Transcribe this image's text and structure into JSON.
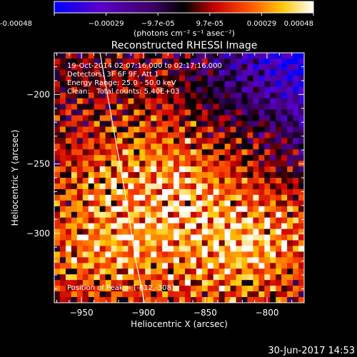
{
  "chart_data": {
    "type": "heatmap",
    "title": "Reconstructed RHESSI Image",
    "xlabel": "Heliocentric X (arcsec)",
    "ylabel": "Heliocentric Y (arcsec)",
    "xlim": [
      -972,
      -770
    ],
    "ylim": [
      -350,
      -170
    ],
    "x_ticks": [
      -950,
      -900,
      -850,
      -800
    ],
    "y_ticks": [
      -200,
      -250,
      -300
    ],
    "colorbar": {
      "range": [
        -0.00048,
        0.00048
      ],
      "ticks": [
        "-0.00048",
        "−0.00029",
        "−9.7e-05",
        "9.7e-05",
        "0.00029",
        "0.00048"
      ],
      "label": "(photons cm⁻² s⁻¹ asec⁻²)",
      "stops": [
        "#0000ff",
        "#5a00c8",
        "#3c0064",
        "#000000",
        "#c80000",
        "#ff5000",
        "#ffc800",
        "#ffffff"
      ]
    },
    "annotations": [
      "19-Oct-2014 02:07:16.000 to 02:17:16.000",
      "Detectors: 3F 6F 9F, Att 1",
      "Energy Range: 25.0 - 50.0 keV",
      "Clean:   Total counts: 5.40E+03"
    ],
    "peak_label": "Position of Peak = [-812,-308]",
    "peak": {
      "x": -812,
      "y": -308
    },
    "limb_curve": [
      [
        -935,
        -170
      ],
      [
        -925,
        -220
      ],
      [
        -915,
        -270
      ],
      [
        -906,
        -320
      ],
      [
        -899,
        -350
      ]
    ]
  },
  "footer": {
    "timestamp": "30-Jun-2017 14:53"
  }
}
